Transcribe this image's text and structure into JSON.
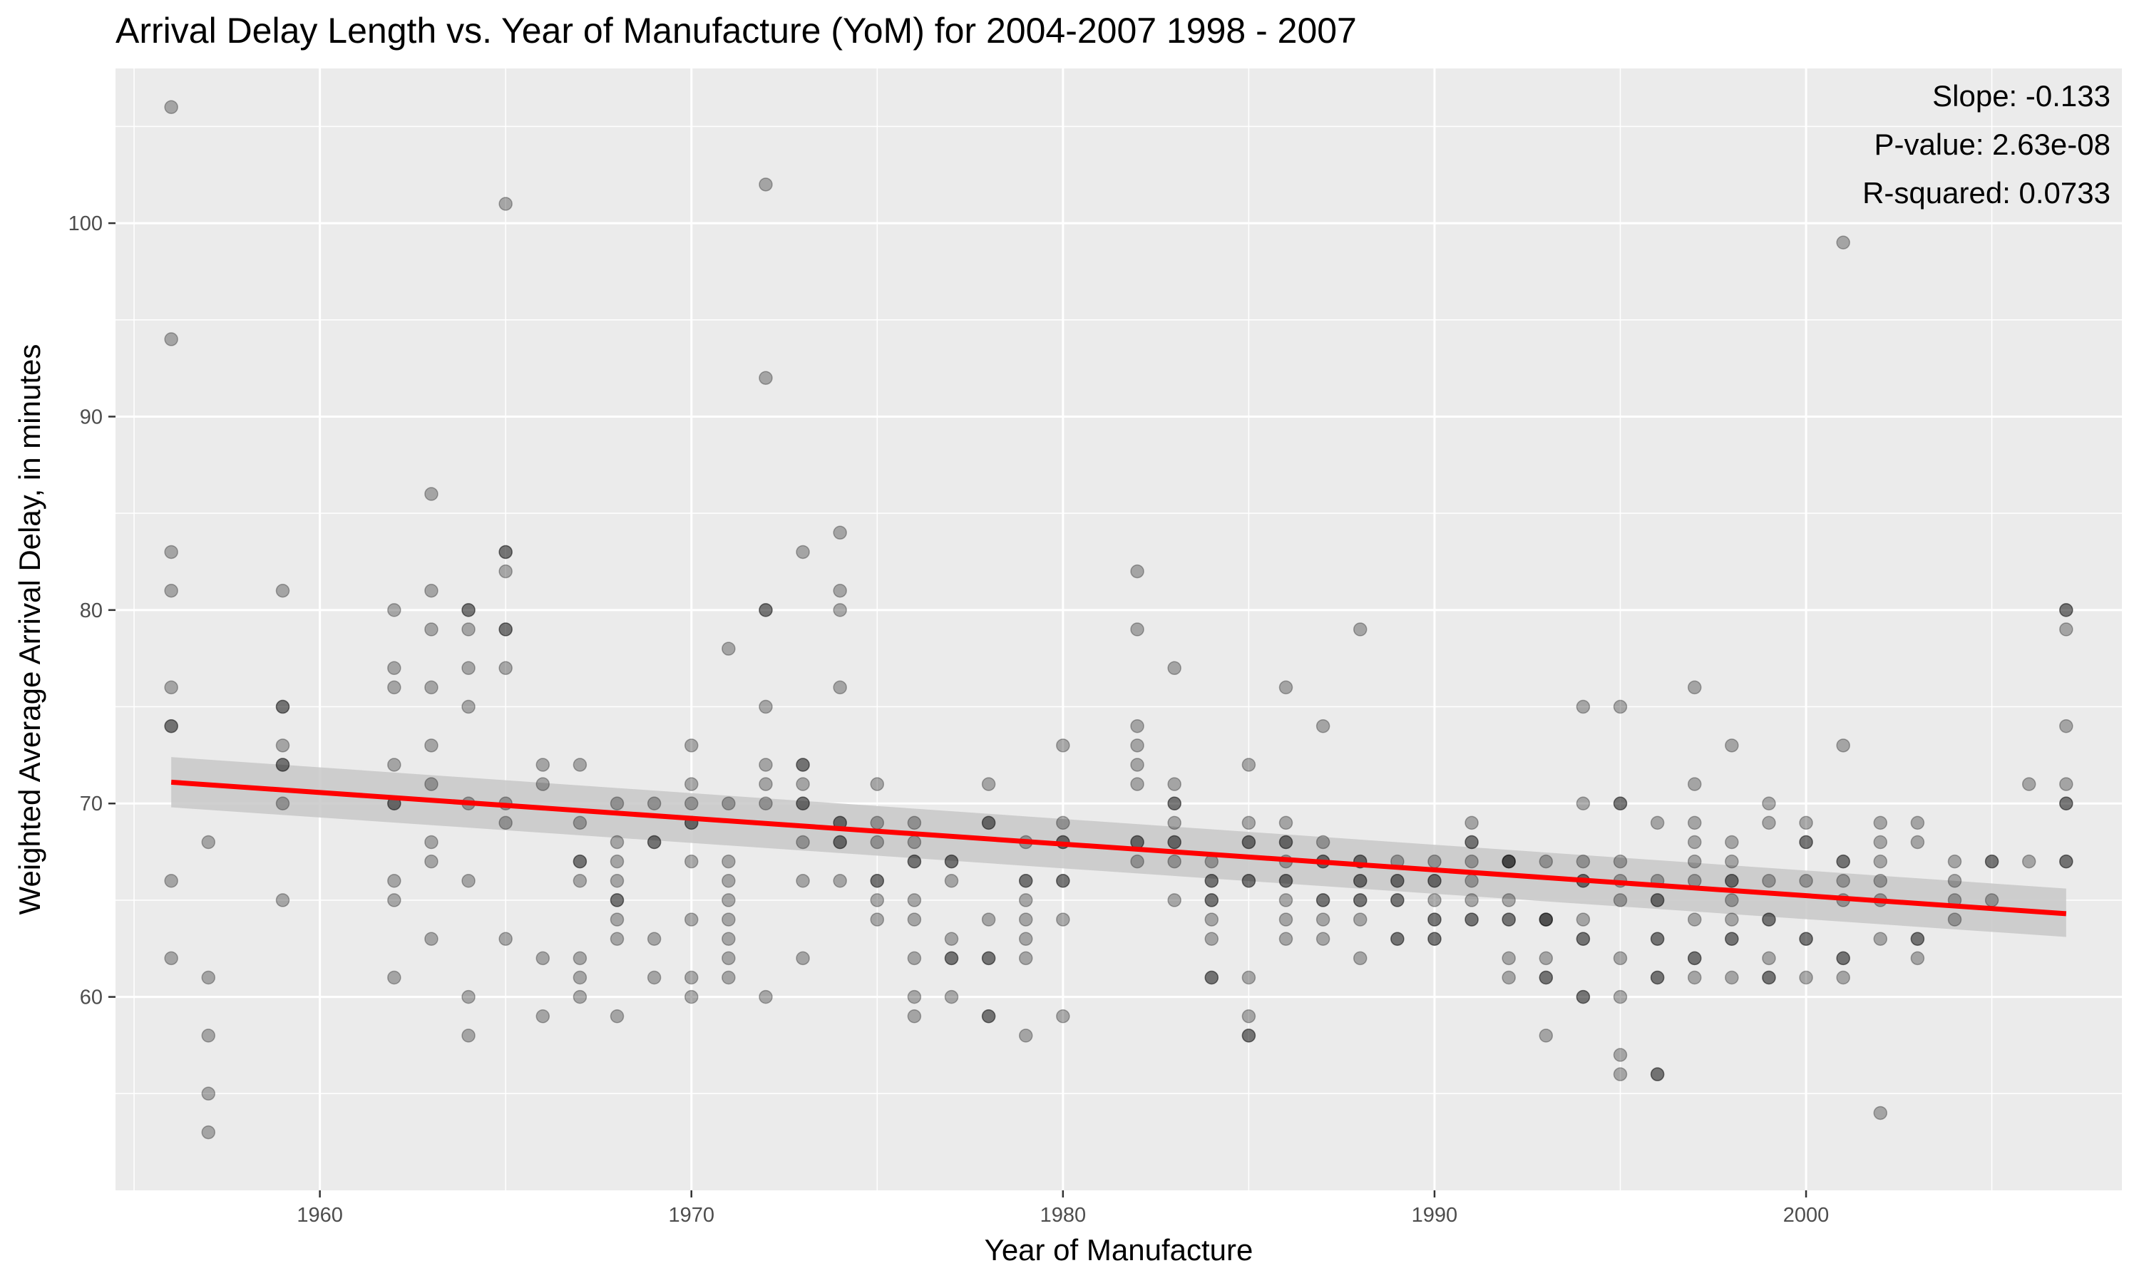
{
  "chart_data": {
    "type": "scatter",
    "title": "Arrival Delay Length vs. Year of Manufacture (YoM) for 2004-2007 1998 - 2007",
    "xlabel": "Year of Manufacture",
    "ylabel": "Weighted Average Arrival Delay, in minutes",
    "xlim": [
      1954.5,
      2008.5
    ],
    "ylim": [
      50,
      108
    ],
    "x_ticks": [
      1960,
      1970,
      1980,
      1990,
      2000
    ],
    "x_tick_labels": [
      "1960",
      "1970",
      "1980",
      "1990",
      "2000"
    ],
    "y_ticks": [
      60,
      70,
      80,
      90,
      100
    ],
    "y_tick_labels": [
      "60",
      "70",
      "80",
      "90",
      "100"
    ],
    "grid": true,
    "legend": "none",
    "colors": {
      "panel": "#ebebeb",
      "grid": "#ffffff",
      "points": "#000000",
      "trend_line": "#ff0000",
      "confidence_band": "#c8c8c8"
    },
    "annotations": [
      "Slope: -0.133",
      "P-value: 2.63e-08",
      "R-squared: 0.0733"
    ],
    "trend_line": {
      "x": [
        1956,
        2007
      ],
      "y": [
        71.1,
        64.3
      ],
      "ci_lower": [
        69.8,
        63.1
      ],
      "ci_upper": [
        72.4,
        65.6
      ]
    },
    "points": [
      [
        1956,
        106
      ],
      [
        1956,
        94
      ],
      [
        1956,
        83
      ],
      [
        1956,
        81
      ],
      [
        1956,
        76
      ],
      [
        1956,
        74
      ],
      [
        1956,
        74
      ],
      [
        1956,
        66
      ],
      [
        1956,
        62
      ],
      [
        1957,
        68
      ],
      [
        1957,
        61
      ],
      [
        1957,
        58
      ],
      [
        1957,
        55
      ],
      [
        1957,
        53
      ],
      [
        1959,
        81
      ],
      [
        1959,
        75
      ],
      [
        1959,
        75
      ],
      [
        1959,
        73
      ],
      [
        1959,
        72
      ],
      [
        1959,
        72
      ],
      [
        1959,
        70
      ],
      [
        1959,
        65
      ],
      [
        1962,
        80
      ],
      [
        1962,
        77
      ],
      [
        1962,
        76
      ],
      [
        1962,
        72
      ],
      [
        1962,
        70
      ],
      [
        1962,
        70
      ],
      [
        1962,
        66
      ],
      [
        1962,
        65
      ],
      [
        1962,
        61
      ],
      [
        1963,
        86
      ],
      [
        1963,
        81
      ],
      [
        1963,
        79
      ],
      [
        1963,
        76
      ],
      [
        1963,
        73
      ],
      [
        1963,
        71
      ],
      [
        1963,
        68
      ],
      [
        1963,
        67
      ],
      [
        1963,
        63
      ],
      [
        1964,
        80
      ],
      [
        1964,
        80
      ],
      [
        1964,
        79
      ],
      [
        1964,
        77
      ],
      [
        1964,
        75
      ],
      [
        1964,
        70
      ],
      [
        1964,
        66
      ],
      [
        1964,
        60
      ],
      [
        1964,
        58
      ],
      [
        1965,
        101
      ],
      [
        1965,
        83
      ],
      [
        1965,
        83
      ],
      [
        1965,
        82
      ],
      [
        1965,
        79
      ],
      [
        1965,
        79
      ],
      [
        1965,
        77
      ],
      [
        1965,
        70
      ],
      [
        1965,
        69
      ],
      [
        1965,
        63
      ],
      [
        1966,
        72
      ],
      [
        1966,
        71
      ],
      [
        1966,
        62
      ],
      [
        1966,
        59
      ],
      [
        1967,
        72
      ],
      [
        1967,
        69
      ],
      [
        1967,
        67
      ],
      [
        1967,
        67
      ],
      [
        1967,
        66
      ],
      [
        1967,
        62
      ],
      [
        1967,
        61
      ],
      [
        1967,
        60
      ],
      [
        1968,
        70
      ],
      [
        1968,
        68
      ],
      [
        1968,
        67
      ],
      [
        1968,
        66
      ],
      [
        1968,
        65
      ],
      [
        1968,
        65
      ],
      [
        1968,
        64
      ],
      [
        1968,
        63
      ],
      [
        1968,
        59
      ],
      [
        1969,
        70
      ],
      [
        1969,
        68
      ],
      [
        1969,
        68
      ],
      [
        1969,
        63
      ],
      [
        1969,
        61
      ],
      [
        1970,
        73
      ],
      [
        1970,
        71
      ],
      [
        1970,
        70
      ],
      [
        1970,
        69
      ],
      [
        1970,
        69
      ],
      [
        1970,
        67
      ],
      [
        1970,
        64
      ],
      [
        1970,
        61
      ],
      [
        1970,
        60
      ],
      [
        1971,
        78
      ],
      [
        1971,
        70
      ],
      [
        1971,
        67
      ],
      [
        1971,
        66
      ],
      [
        1971,
        65
      ],
      [
        1971,
        64
      ],
      [
        1971,
        63
      ],
      [
        1971,
        62
      ],
      [
        1971,
        61
      ],
      [
        1972,
        102
      ],
      [
        1972,
        92
      ],
      [
        1972,
        80
      ],
      [
        1972,
        80
      ],
      [
        1972,
        75
      ],
      [
        1972,
        72
      ],
      [
        1972,
        71
      ],
      [
        1972,
        70
      ],
      [
        1972,
        60
      ],
      [
        1973,
        83
      ],
      [
        1973,
        72
      ],
      [
        1973,
        72
      ],
      [
        1973,
        71
      ],
      [
        1973,
        70
      ],
      [
        1973,
        70
      ],
      [
        1973,
        68
      ],
      [
        1973,
        66
      ],
      [
        1973,
        62
      ],
      [
        1974,
        84
      ],
      [
        1974,
        81
      ],
      [
        1974,
        80
      ],
      [
        1974,
        76
      ],
      [
        1974,
        69
      ],
      [
        1974,
        69
      ],
      [
        1974,
        68
      ],
      [
        1974,
        68
      ],
      [
        1974,
        66
      ],
      [
        1975,
        71
      ],
      [
        1975,
        69
      ],
      [
        1975,
        68
      ],
      [
        1975,
        66
      ],
      [
        1975,
        66
      ],
      [
        1975,
        65
      ],
      [
        1975,
        64
      ],
      [
        1976,
        69
      ],
      [
        1976,
        68
      ],
      [
        1976,
        67
      ],
      [
        1976,
        67
      ],
      [
        1976,
        65
      ],
      [
        1976,
        64
      ],
      [
        1976,
        62
      ],
      [
        1976,
        60
      ],
      [
        1976,
        59
      ],
      [
        1977,
        67
      ],
      [
        1977,
        67
      ],
      [
        1977,
        66
      ],
      [
        1977,
        63
      ],
      [
        1977,
        62
      ],
      [
        1977,
        62
      ],
      [
        1977,
        60
      ],
      [
        1978,
        71
      ],
      [
        1978,
        69
      ],
      [
        1978,
        69
      ],
      [
        1978,
        64
      ],
      [
        1978,
        62
      ],
      [
        1978,
        62
      ],
      [
        1978,
        59
      ],
      [
        1978,
        59
      ],
      [
        1979,
        68
      ],
      [
        1979,
        66
      ],
      [
        1979,
        66
      ],
      [
        1979,
        65
      ],
      [
        1979,
        64
      ],
      [
        1979,
        63
      ],
      [
        1979,
        62
      ],
      [
        1979,
        58
      ],
      [
        1980,
        73
      ],
      [
        1980,
        69
      ],
      [
        1980,
        68
      ],
      [
        1980,
        68
      ],
      [
        1980,
        66
      ],
      [
        1980,
        66
      ],
      [
        1980,
        64
      ],
      [
        1980,
        59
      ],
      [
        1982,
        82
      ],
      [
        1982,
        79
      ],
      [
        1982,
        74
      ],
      [
        1982,
        73
      ],
      [
        1982,
        72
      ],
      [
        1982,
        71
      ],
      [
        1982,
        68
      ],
      [
        1982,
        68
      ],
      [
        1982,
        67
      ],
      [
        1983,
        77
      ],
      [
        1983,
        71
      ],
      [
        1983,
        70
      ],
      [
        1983,
        70
      ],
      [
        1983,
        69
      ],
      [
        1983,
        68
      ],
      [
        1983,
        68
      ],
      [
        1983,
        67
      ],
      [
        1983,
        65
      ],
      [
        1984,
        67
      ],
      [
        1984,
        66
      ],
      [
        1984,
        66
      ],
      [
        1984,
        65
      ],
      [
        1984,
        65
      ],
      [
        1984,
        64
      ],
      [
        1984,
        63
      ],
      [
        1984,
        61
      ],
      [
        1984,
        61
      ],
      [
        1985,
        72
      ],
      [
        1985,
        69
      ],
      [
        1985,
        68
      ],
      [
        1985,
        68
      ],
      [
        1985,
        66
      ],
      [
        1985,
        66
      ],
      [
        1985,
        61
      ],
      [
        1985,
        59
      ],
      [
        1985,
        58
      ],
      [
        1985,
        58
      ],
      [
        1986,
        76
      ],
      [
        1986,
        69
      ],
      [
        1986,
        68
      ],
      [
        1986,
        68
      ],
      [
        1986,
        67
      ],
      [
        1986,
        66
      ],
      [
        1986,
        66
      ],
      [
        1986,
        65
      ],
      [
        1986,
        64
      ],
      [
        1986,
        63
      ],
      [
        1987,
        74
      ],
      [
        1987,
        68
      ],
      [
        1987,
        67
      ],
      [
        1987,
        67
      ],
      [
        1987,
        65
      ],
      [
        1987,
        65
      ],
      [
        1987,
        64
      ],
      [
        1987,
        63
      ],
      [
        1988,
        79
      ],
      [
        1988,
        67
      ],
      [
        1988,
        67
      ],
      [
        1988,
        66
      ],
      [
        1988,
        66
      ],
      [
        1988,
        65
      ],
      [
        1988,
        65
      ],
      [
        1988,
        64
      ],
      [
        1988,
        62
      ],
      [
        1989,
        67
      ],
      [
        1989,
        66
      ],
      [
        1989,
        66
      ],
      [
        1989,
        65
      ],
      [
        1989,
        65
      ],
      [
        1989,
        63
      ],
      [
        1989,
        63
      ],
      [
        1990,
        67
      ],
      [
        1990,
        66
      ],
      [
        1990,
        66
      ],
      [
        1990,
        65
      ],
      [
        1990,
        64
      ],
      [
        1990,
        64
      ],
      [
        1990,
        63
      ],
      [
        1990,
        63
      ],
      [
        1991,
        69
      ],
      [
        1991,
        68
      ],
      [
        1991,
        68
      ],
      [
        1991,
        67
      ],
      [
        1991,
        66
      ],
      [
        1991,
        65
      ],
      [
        1991,
        64
      ],
      [
        1991,
        64
      ],
      [
        1992,
        67
      ],
      [
        1992,
        67
      ],
      [
        1992,
        67
      ],
      [
        1992,
        65
      ],
      [
        1992,
        64
      ],
      [
        1992,
        64
      ],
      [
        1992,
        62
      ],
      [
        1992,
        61
      ],
      [
        1993,
        67
      ],
      [
        1993,
        64
      ],
      [
        1993,
        64
      ],
      [
        1993,
        64
      ],
      [
        1993,
        62
      ],
      [
        1993,
        61
      ],
      [
        1993,
        61
      ],
      [
        1993,
        58
      ],
      [
        1994,
        75
      ],
      [
        1994,
        70
      ],
      [
        1994,
        67
      ],
      [
        1994,
        66
      ],
      [
        1994,
        66
      ],
      [
        1994,
        64
      ],
      [
        1994,
        63
      ],
      [
        1994,
        63
      ],
      [
        1994,
        60
      ],
      [
        1994,
        60
      ],
      [
        1995,
        75
      ],
      [
        1995,
        70
      ],
      [
        1995,
        70
      ],
      [
        1995,
        67
      ],
      [
        1995,
        66
      ],
      [
        1995,
        65
      ],
      [
        1995,
        62
      ],
      [
        1995,
        60
      ],
      [
        1995,
        57
      ],
      [
        1995,
        56
      ],
      [
        1996,
        69
      ],
      [
        1996,
        66
      ],
      [
        1996,
        65
      ],
      [
        1996,
        65
      ],
      [
        1996,
        63
      ],
      [
        1996,
        63
      ],
      [
        1996,
        61
      ],
      [
        1996,
        61
      ],
      [
        1996,
        56
      ],
      [
        1996,
        56
      ],
      [
        1997,
        76
      ],
      [
        1997,
        71
      ],
      [
        1997,
        69
      ],
      [
        1997,
        68
      ],
      [
        1997,
        67
      ],
      [
        1997,
        66
      ],
      [
        1997,
        64
      ],
      [
        1997,
        62
      ],
      [
        1997,
        62
      ],
      [
        1997,
        61
      ],
      [
        1998,
        73
      ],
      [
        1998,
        68
      ],
      [
        1998,
        67
      ],
      [
        1998,
        66
      ],
      [
        1998,
        66
      ],
      [
        1998,
        65
      ],
      [
        1998,
        64
      ],
      [
        1998,
        63
      ],
      [
        1998,
        63
      ],
      [
        1998,
        61
      ],
      [
        1999,
        70
      ],
      [
        1999,
        69
      ],
      [
        1999,
        66
      ],
      [
        1999,
        64
      ],
      [
        1999,
        64
      ],
      [
        1999,
        62
      ],
      [
        1999,
        61
      ],
      [
        1999,
        61
      ],
      [
        2000,
        69
      ],
      [
        2000,
        68
      ],
      [
        2000,
        68
      ],
      [
        2000,
        66
      ],
      [
        2000,
        63
      ],
      [
        2000,
        63
      ],
      [
        2000,
        61
      ],
      [
        2001,
        99
      ],
      [
        2001,
        73
      ],
      [
        2001,
        67
      ],
      [
        2001,
        67
      ],
      [
        2001,
        66
      ],
      [
        2001,
        65
      ],
      [
        2001,
        62
      ],
      [
        2001,
        62
      ],
      [
        2001,
        61
      ],
      [
        2002,
        69
      ],
      [
        2002,
        68
      ],
      [
        2002,
        67
      ],
      [
        2002,
        66
      ],
      [
        2002,
        65
      ],
      [
        2002,
        63
      ],
      [
        2002,
        54
      ],
      [
        2003,
        69
      ],
      [
        2003,
        68
      ],
      [
        2003,
        63
      ],
      [
        2003,
        63
      ],
      [
        2003,
        62
      ],
      [
        2004,
        67
      ],
      [
        2004,
        66
      ],
      [
        2004,
        65
      ],
      [
        2004,
        64
      ],
      [
        2005,
        67
      ],
      [
        2005,
        67
      ],
      [
        2005,
        65
      ],
      [
        2006,
        71
      ],
      [
        2006,
        67
      ],
      [
        2007,
        80
      ],
      [
        2007,
        80
      ],
      [
        2007,
        79
      ],
      [
        2007,
        74
      ],
      [
        2007,
        71
      ],
      [
        2007,
        70
      ],
      [
        2007,
        70
      ],
      [
        2007,
        67
      ],
      [
        2007,
        67
      ]
    ]
  }
}
